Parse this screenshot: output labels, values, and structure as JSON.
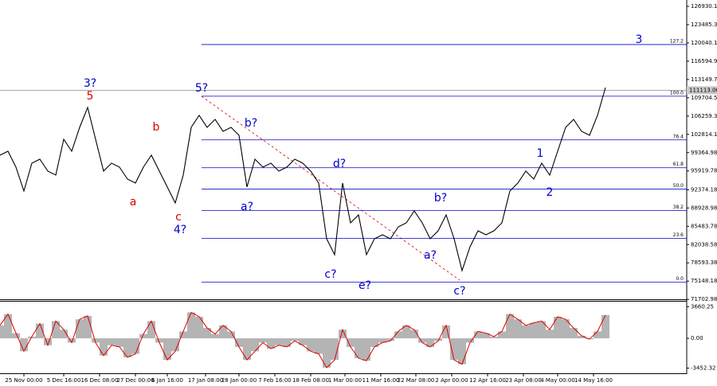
{
  "chart_data": [
    {
      "type": "line",
      "color": "#000000",
      "x": [
        0,
        1,
        2,
        3,
        4,
        5,
        6,
        7,
        8,
        9,
        10,
        11,
        12,
        13,
        14,
        15,
        16,
        17,
        18,
        19,
        20,
        21,
        22,
        23,
        24,
        25,
        26,
        27,
        28,
        29,
        30,
        31,
        32,
        33,
        34,
        35,
        36,
        37,
        38,
        39,
        40,
        41,
        42,
        43,
        44,
        45,
        46,
        47,
        48,
        49,
        50,
        51,
        52,
        53,
        54,
        55,
        56,
        57,
        58,
        59,
        60,
        61,
        62,
        63,
        64,
        65,
        66,
        67,
        68,
        69,
        70,
        71,
        72,
        73,
        74,
        75,
        76
      ],
      "values": [
        98880,
        99630,
        96630,
        92130,
        97380,
        98130,
        95880,
        95130,
        101880,
        99630,
        104130,
        107880,
        101880,
        95880,
        97380,
        96630,
        94380,
        93630,
        96630,
        98880,
        95880,
        92880,
        89880,
        95130,
        104130,
        106380,
        104130,
        105630,
        103380,
        104130,
        102630,
        92880,
        98130,
        96630,
        97380,
        95880,
        96630,
        98130,
        97380,
        95880,
        93630,
        83130,
        80130,
        93630,
        86130,
        87630,
        80130,
        83130,
        83880,
        83130,
        85380,
        86130,
        88380,
        86130,
        83130,
        84630,
        87630,
        83130,
        77130,
        81630,
        84630,
        83880,
        84630,
        86130,
        92130,
        93630,
        95880,
        94380,
        97380,
        95130,
        99630,
        104130,
        105630,
        103380,
        102630,
        106380,
        111630
      ],
      "xlim": [
        0,
        86.2
      ],
      "ylim": [
        71730,
        128130
      ],
      "yticks": [
        126930.15,
        123485.35,
        120040.18,
        116594.98,
        113149.78,
        109704.56,
        106259.38,
        102814.18,
        99364.98,
        95919.78,
        92374.18,
        88928.98,
        85483.78,
        82038.58,
        78593.38,
        75148.18,
        71702.98
      ],
      "xticks": [
        {
          "value": 3,
          "label": "25 Nov 00:00"
        },
        {
          "value": 8,
          "label": "5 Dec 16:00"
        },
        {
          "value": 12.5,
          "label": "16 Dec 08:00"
        },
        {
          "value": 17,
          "label": "27 Dec 00:00"
        },
        {
          "value": 21,
          "label": "6 Jan 16:00"
        },
        {
          "value": 25.8,
          "label": "17 Jan 08:00"
        },
        {
          "value": 30,
          "label": "28 Jan 00:00"
        },
        {
          "value": 34.5,
          "label": "7 Feb 16:00"
        },
        {
          "value": 39,
          "label": "18 Feb 08:00"
        },
        {
          "value": 43.3,
          "label": "1 Mar 00:00"
        },
        {
          "value": 47.8,
          "label": "11 Mar 16:00"
        },
        {
          "value": 52.2,
          "label": "22 Mar 08:00"
        },
        {
          "value": 56.7,
          "label": "2 Apr 00:00"
        },
        {
          "value": 61.2,
          "label": "12 Apr 16:00"
        },
        {
          "value": 65.7,
          "label": "23 Apr 08:00"
        },
        {
          "value": 70,
          "label": "4 May 00:00"
        },
        {
          "value": 74.5,
          "label": "14 May 16:00"
        }
      ],
      "current_price": 111113.06,
      "fib_levels": [
        {
          "label": "127.2",
          "price": 119741
        },
        {
          "label": "100.0",
          "price": 110004
        },
        {
          "label": "76.4",
          "price": 101765
        },
        {
          "label": "61.8",
          "price": 96522
        },
        {
          "label": "50.0",
          "price": 92477
        },
        {
          "label": "38.2",
          "price": 88433
        },
        {
          "label": "23.6",
          "price": 83190
        },
        {
          "label": "0.0",
          "price": 74951
        }
      ],
      "fib_color": "#0000cc",
      "annotations": [
        {
          "text": "3?",
          "x": 11.3,
          "price": 112380,
          "color": "#0000cc"
        },
        {
          "text": "5",
          "x": 11.3,
          "price": 109980,
          "color": "#dd0000"
        },
        {
          "text": "b",
          "x": 19.6,
          "price": 104130,
          "color": "#dd0000"
        },
        {
          "text": "a",
          "x": 16.7,
          "price": 90030,
          "color": "#dd0000"
        },
        {
          "text": "c",
          "x": 22.4,
          "price": 87180,
          "color": "#dd0000"
        },
        {
          "text": "4?",
          "x": 22.6,
          "price": 84780,
          "color": "#0000cc"
        },
        {
          "text": "5?",
          "x": 25.3,
          "price": 111480,
          "color": "#0000cc"
        },
        {
          "text": "b?",
          "x": 31.5,
          "price": 104880,
          "color": "#0000cc"
        },
        {
          "text": "a?",
          "x": 31,
          "price": 89130,
          "color": "#0000cc"
        },
        {
          "text": "d?",
          "x": 42.6,
          "price": 97230,
          "color": "#0000cc"
        },
        {
          "text": "c?",
          "x": 41.5,
          "price": 76380,
          "color": "#0000cc"
        },
        {
          "text": "e?",
          "x": 45.8,
          "price": 74280,
          "color": "#0000cc"
        },
        {
          "text": "b?",
          "x": 55.3,
          "price": 90780,
          "color": "#0000cc"
        },
        {
          "text": "a?",
          "x": 54,
          "price": 79980,
          "color": "#0000cc"
        },
        {
          "text": "c?",
          "x": 57.7,
          "price": 73230,
          "color": "#0000cc"
        },
        {
          "text": "1",
          "x": 67.8,
          "price": 99180,
          "color": "#0000cc"
        },
        {
          "text": "2",
          "x": 69,
          "price": 91830,
          "color": "#0000cc"
        },
        {
          "text": "3",
          "x": 80.2,
          "price": 120630,
          "color": "#0000cc"
        }
      ]
    },
    {
      "type": "bar",
      "color": "#b4b4b4",
      "line_color": "#dd0000",
      "values": [
        1500,
        2800,
        600,
        -1500,
        200,
        1700,
        -800,
        2000,
        1000,
        -500,
        2200,
        2600,
        -500,
        -2000,
        -800,
        -1000,
        -2200,
        -1800,
        500,
        2000,
        -500,
        -2500,
        -1500,
        800,
        3000,
        2500,
        1200,
        500,
        1500,
        800,
        -1000,
        -2500,
        -1500,
        -500,
        -1200,
        -800,
        -1000,
        -300,
        -800,
        -1500,
        -1800,
        -3400,
        -2500,
        1000,
        -1000,
        -2300,
        -2600,
        -1000,
        -500,
        -300,
        800,
        1500,
        1000,
        -500,
        -1000,
        -300,
        1500,
        -2500,
        -3000,
        -500,
        800,
        600,
        200,
        800,
        2800,
        2200,
        1500,
        1800,
        2000,
        1000,
        2500,
        2200,
        1200,
        300,
        -100,
        800,
        2700
      ],
      "xlim": [
        0,
        86.2
      ],
      "ylim": [
        -4050,
        4250
      ],
      "yticks": [
        3660.25,
        {
          "value": 0,
          "label": "0.00"
        },
        -3452.32
      ]
    }
  ]
}
